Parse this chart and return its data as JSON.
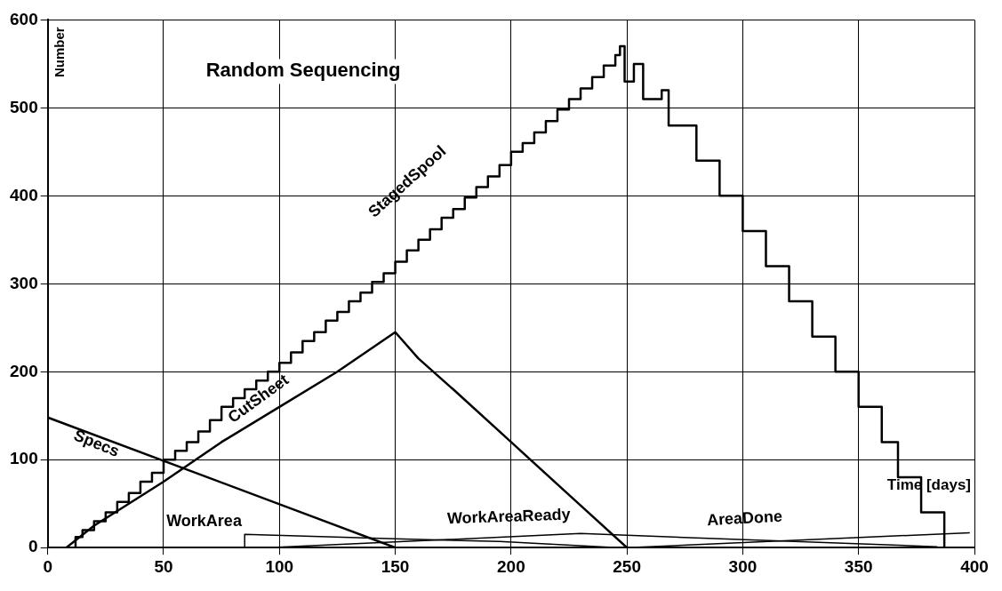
{
  "chart_data": {
    "type": "line",
    "title": "Random Sequencing",
    "xlabel": "Time [days]",
    "ylabel": "Number",
    "xlim": [
      0,
      400
    ],
    "xticks": [
      0,
      50,
      100,
      150,
      200,
      250,
      300,
      350,
      400
    ],
    "ylim": [
      0,
      600
    ],
    "yticks": [
      0,
      100,
      200,
      300,
      400,
      500,
      600
    ],
    "grid": true,
    "legend": false,
    "series": [
      {
        "name": "StagedSpool",
        "type": "step",
        "color": "#000000",
        "x": [
          0,
          12,
          15,
          20,
          25,
          30,
          35,
          40,
          45,
          50,
          55,
          60,
          65,
          70,
          75,
          80,
          85,
          90,
          95,
          100,
          105,
          110,
          115,
          120,
          125,
          130,
          135,
          140,
          145,
          150,
          155,
          160,
          165,
          170,
          175,
          180,
          185,
          190,
          195,
          200,
          205,
          210,
          215,
          220,
          225,
          230,
          235,
          240,
          245,
          247,
          249,
          253,
          257,
          265,
          268,
          280,
          290,
          300,
          310,
          320,
          330,
          340,
          350,
          360,
          367,
          377,
          387
        ],
        "values": [
          0,
          12,
          20,
          30,
          40,
          52,
          62,
          75,
          85,
          100,
          110,
          120,
          132,
          145,
          160,
          170,
          180,
          190,
          200,
          210,
          222,
          235,
          245,
          258,
          268,
          280,
          290,
          302,
          312,
          325,
          338,
          350,
          362,
          375,
          385,
          398,
          410,
          422,
          435,
          450,
          460,
          472,
          485,
          498,
          510,
          522,
          535,
          548,
          560,
          570,
          530,
          550,
          510,
          520,
          480,
          440,
          400,
          360,
          320,
          280,
          240,
          200,
          160,
          120,
          80,
          40,
          0
        ]
      },
      {
        "name": "CutSheet",
        "type": "line",
        "color": "#000000",
        "x": [
          0,
          8,
          20,
          50,
          75,
          100,
          125,
          150,
          160,
          175,
          200,
          225,
          250
        ],
        "values": [
          0,
          0,
          25,
          75,
          120,
          160,
          200,
          245,
          215,
          180,
          120,
          60,
          0
        ]
      },
      {
        "name": "Specs",
        "type": "line",
        "color": "#000000",
        "x": [
          0,
          150
        ],
        "values": [
          148,
          0
        ]
      },
      {
        "name": "WorkArea",
        "type": "line",
        "color": "#000000",
        "x": [
          85,
          85,
          150,
          195,
          246
        ],
        "values": [
          0,
          15,
          10,
          7,
          0
        ]
      },
      {
        "name": "WorkAreaReady",
        "type": "line",
        "color": "#000000",
        "x": [
          95,
          230,
          384
        ],
        "values": [
          0,
          16,
          1
        ]
      },
      {
        "name": "AreaDone",
        "type": "line",
        "color": "#000000",
        "x": [
          250,
          398
        ],
        "values": [
          0,
          17
        ]
      }
    ]
  }
}
